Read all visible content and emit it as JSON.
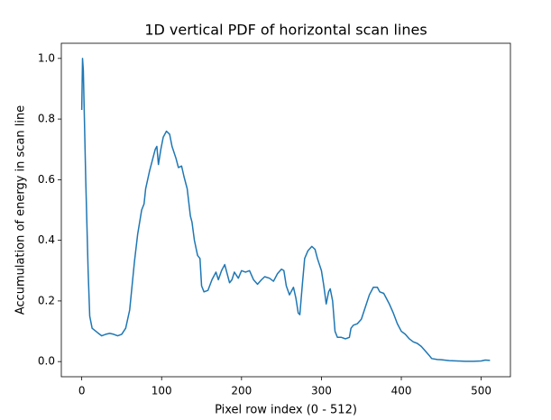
{
  "chart_data": {
    "type": "line",
    "title": "1D vertical PDF of horizontal scan lines",
    "xlabel": "Pixel row index (0 - 512)",
    "ylabel": "Accumulation of energy in scan line",
    "color": "#1f77b4",
    "x": [
      0,
      1,
      2,
      5,
      8,
      10,
      13,
      20,
      25,
      30,
      35,
      40,
      45,
      50,
      55,
      60,
      63,
      66,
      70,
      75,
      78,
      80,
      85,
      88,
      92,
      94,
      96,
      99,
      102,
      106,
      110,
      113,
      118,
      121,
      125,
      128,
      132,
      136,
      138,
      141,
      145,
      148,
      150,
      153,
      158,
      163,
      168,
      171,
      175,
      179,
      181,
      185,
      188,
      191,
      196,
      200,
      205,
      210,
      215,
      220,
      225,
      229,
      235,
      240,
      245,
      250,
      253,
      256,
      260,
      265,
      268,
      271,
      273,
      276,
      279,
      283,
      288,
      292,
      295,
      300,
      303,
      306,
      309,
      311,
      314,
      317,
      320,
      325,
      330,
      335,
      337,
      340,
      345,
      350,
      355,
      360,
      365,
      370,
      373,
      378,
      385,
      390,
      395,
      400,
      405,
      410,
      415,
      420,
      425,
      430,
      435,
      438,
      445,
      450,
      460,
      470,
      480,
      490,
      500,
      505,
      511
    ],
    "values": [
      0.83,
      1.0,
      0.96,
      0.6,
      0.3,
      0.15,
      0.11,
      0.095,
      0.085,
      0.09,
      0.093,
      0.09,
      0.085,
      0.09,
      0.11,
      0.17,
      0.25,
      0.33,
      0.42,
      0.5,
      0.52,
      0.57,
      0.63,
      0.66,
      0.7,
      0.71,
      0.65,
      0.7,
      0.74,
      0.76,
      0.75,
      0.71,
      0.67,
      0.64,
      0.645,
      0.61,
      0.57,
      0.48,
      0.46,
      0.4,
      0.35,
      0.34,
      0.25,
      0.23,
      0.235,
      0.27,
      0.295,
      0.27,
      0.3,
      0.32,
      0.3,
      0.26,
      0.27,
      0.295,
      0.275,
      0.3,
      0.295,
      0.3,
      0.27,
      0.255,
      0.27,
      0.28,
      0.275,
      0.265,
      0.29,
      0.305,
      0.3,
      0.25,
      0.22,
      0.245,
      0.21,
      0.16,
      0.155,
      0.25,
      0.34,
      0.365,
      0.38,
      0.37,
      0.34,
      0.3,
      0.25,
      0.19,
      0.23,
      0.24,
      0.2,
      0.1,
      0.08,
      0.08,
      0.075,
      0.08,
      0.11,
      0.12,
      0.125,
      0.14,
      0.18,
      0.22,
      0.245,
      0.245,
      0.23,
      0.225,
      0.19,
      0.16,
      0.125,
      0.1,
      0.09,
      0.075,
      0.065,
      0.06,
      0.05,
      0.035,
      0.02,
      0.01,
      0.007,
      0.006,
      0.003,
      0.002,
      0.001,
      0.001,
      0.002,
      0.005,
      0.004
    ],
    "xlim": [
      -25.55,
      536.55
    ],
    "ylim": [
      -0.05,
      1.05
    ],
    "xticks": [
      0,
      100,
      200,
      300,
      400,
      500
    ],
    "yticks": [
      {
        "value": 0,
        "label": "0.0"
      },
      {
        "value": 0.2,
        "label": "0.2"
      },
      {
        "value": 0.4,
        "label": "0.4"
      },
      {
        "value": 0.6,
        "label": "0.6"
      },
      {
        "value": 0.8,
        "label": "0.8"
      },
      {
        "value": 1,
        "label": "1.0"
      }
    ]
  }
}
